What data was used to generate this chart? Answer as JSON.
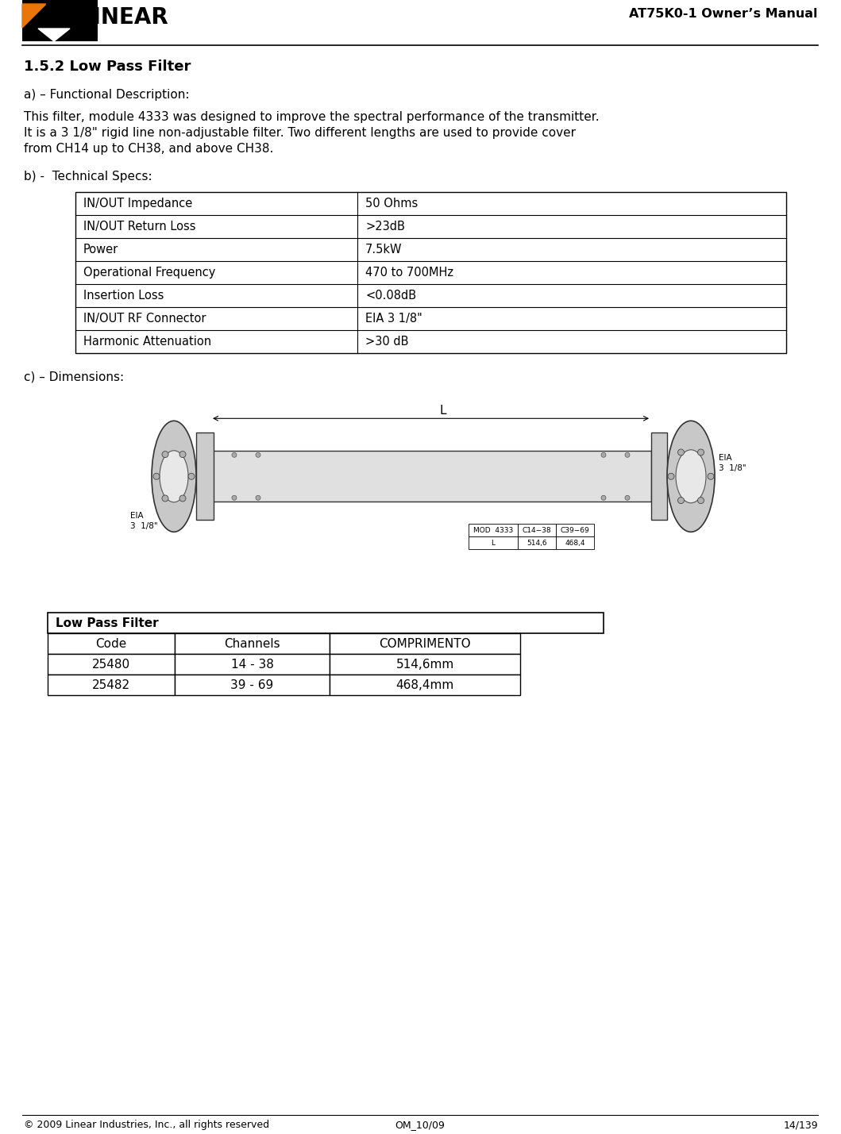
{
  "page_title": "AT75K0-1 Owner’s Manual",
  "section_title": "1.5.2 Low Pass Filter",
  "section_a_label": "a) – Functional Description:",
  "section_a_text_1": "This filter, module 4333 was designed to improve the spectral performance of the transmitter.",
  "section_a_text_2": "It is a 3 1/8\" rigid line non-adjustable filter. Two different lengths are used to provide cover",
  "section_a_text_3": "from CH14 up to CH38, and above CH38.",
  "section_b_label": "b) -  Technical Specs:",
  "tech_specs": [
    [
      "IN/OUT Impedance",
      "50 Ohms"
    ],
    [
      "IN/OUT Return Loss",
      ">23dB"
    ],
    [
      "Power",
      "7.5kW"
    ],
    [
      "Operational Frequency",
      "470 to 700MHz"
    ],
    [
      "Insertion Loss",
      "<0.08dB"
    ],
    [
      "IN/OUT RF Connector",
      "EIA 3 1/8\""
    ],
    [
      "Harmonic Attenuation",
      ">30 dB"
    ]
  ],
  "section_c_label": "c) – Dimensions:",
  "table_header": "Low Pass Filter",
  "table_col_headers": [
    "Code",
    "Channels",
    "COMPRIMENTO"
  ],
  "table_rows": [
    [
      "25480",
      "14 - 38",
      "514,6mm"
    ],
    [
      "25482",
      "39 - 69",
      "468,4mm"
    ]
  ],
  "footer_left": "© 2009 Linear Industries, Inc., all rights reserved",
  "footer_center": "OM_10/09",
  "footer_right": "14/139",
  "bg_color": "#ffffff",
  "text_color": "#000000"
}
